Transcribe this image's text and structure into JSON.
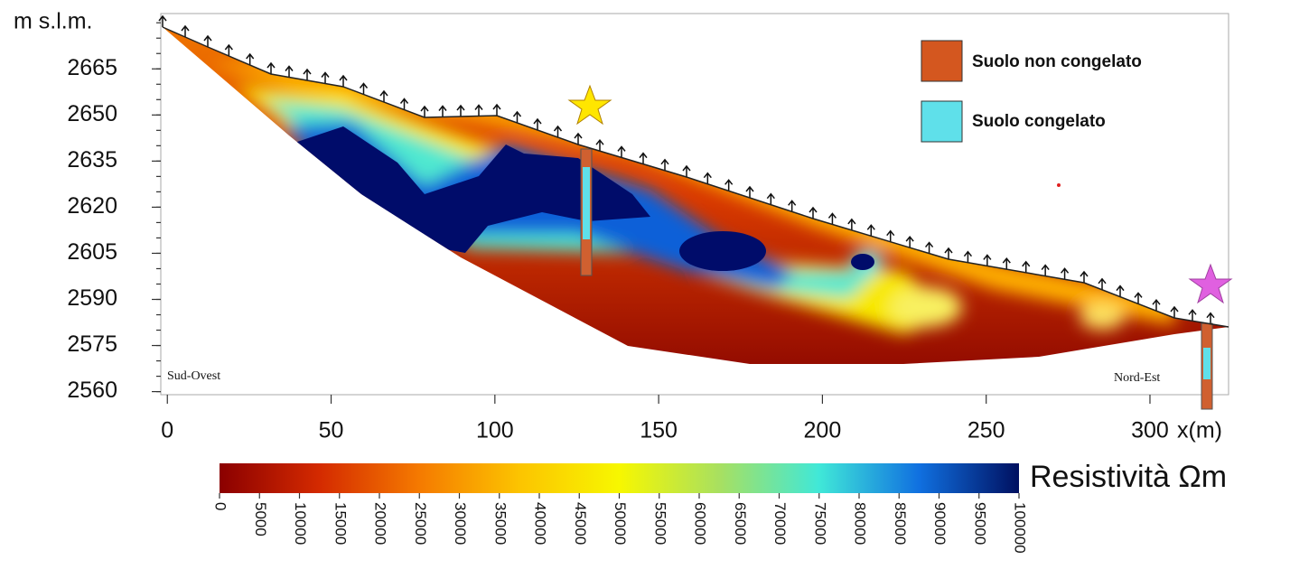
{
  "chart_data": {
    "type": "contour",
    "y_label": "m s.l.m.",
    "x_label": "x(m)",
    "xlim": [
      -2,
      324
    ],
    "ylim": [
      2559,
      2683
    ],
    "xticks": [
      0,
      50,
      100,
      150,
      200,
      250,
      300
    ],
    "yticks": [
      2560,
      2575,
      2590,
      2605,
      2620,
      2635,
      2650,
      2665
    ],
    "annotations": [
      "Sud-Ovest",
      "Nord-Est"
    ],
    "legend": {
      "position": "upper right",
      "items": [
        {
          "name": "Suolo non congelato",
          "color": "#d4571f"
        },
        {
          "name": "Suolo congelato",
          "color": "#5fe0ea"
        }
      ]
    },
    "colorbar": {
      "label": "Resistività Ωm",
      "clim": [
        0,
        100000
      ],
      "ticks": [
        0,
        5000,
        10000,
        15000,
        20000,
        25000,
        30000,
        35000,
        40000,
        45000,
        50000,
        55000,
        60000,
        65000,
        70000,
        75000,
        80000,
        85000,
        90000,
        95000,
        100000
      ],
      "colormap": [
        "#8b0000",
        "#d42a00",
        "#f57a00",
        "#fcc400",
        "#f7f700",
        "#a8e060",
        "#40e8d8",
        "#1070e0",
        "#001060"
      ]
    }
  }
}
